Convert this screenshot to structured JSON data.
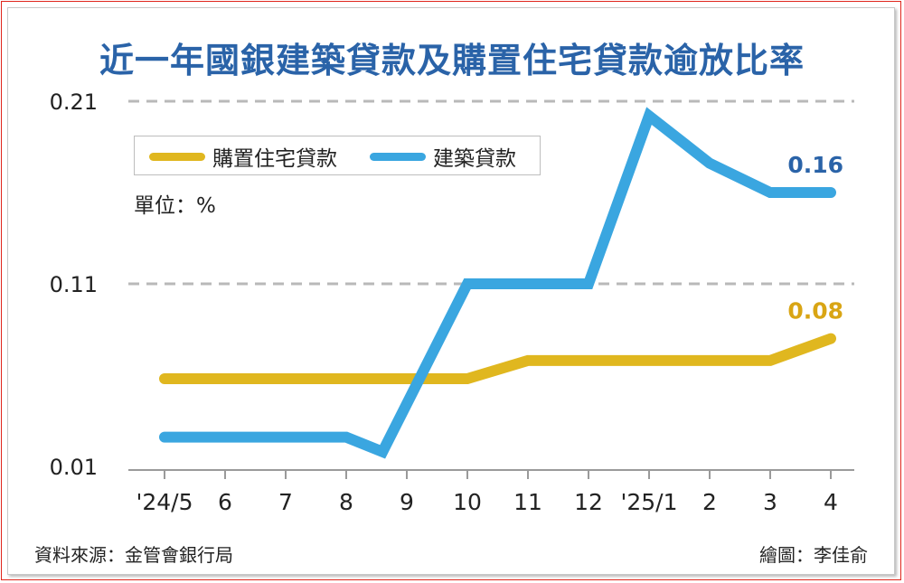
{
  "title": "近一年國銀建築貸款及購置住宅貸款逾放比率",
  "unit_label": "單位：%",
  "source_label": "資料來源：金管會銀行局",
  "credit_label": "繪圖：李佳俞",
  "colors": {
    "title": "#2a63a8",
    "construction": "#3aa6e0",
    "housing": "#e0b71f",
    "border": "#e0261c",
    "grid": "#b9b9b9"
  },
  "chart_data": {
    "type": "line",
    "title": "近一年國銀建築貸款及購置住宅貸款逾放比率",
    "categories": [
      "'24/5",
      "6",
      "7",
      "8",
      "9",
      "10",
      "11",
      "12",
      "'25/1",
      "2",
      "3",
      "4"
    ],
    "y_ticks": [
      "0.21",
      "0.11",
      "0.01"
    ],
    "ylim": [
      0.01,
      0.21
    ],
    "grid": true,
    "legend_position": "top-left",
    "series": [
      {
        "name": "購置住宅貸款",
        "color": "#e0b71f",
        "x": [
          0,
          1,
          2,
          3,
          4,
          5,
          6,
          7,
          8,
          9,
          10,
          11
        ],
        "values": [
          0.058,
          0.058,
          0.058,
          0.058,
          0.058,
          0.058,
          0.068,
          0.068,
          0.068,
          0.068,
          0.068,
          0.08
        ],
        "end_label": "0.08"
      },
      {
        "name": "建築貸款",
        "color": "#3aa6e0",
        "x": [
          0,
          1,
          2,
          3,
          3.6,
          5,
          6,
          7,
          8,
          9,
          10,
          11
        ],
        "values": [
          0.026,
          0.026,
          0.026,
          0.026,
          0.018,
          0.11,
          0.11,
          0.11,
          0.202,
          0.176,
          0.16,
          0.16
        ],
        "end_label": "0.16"
      }
    ]
  }
}
